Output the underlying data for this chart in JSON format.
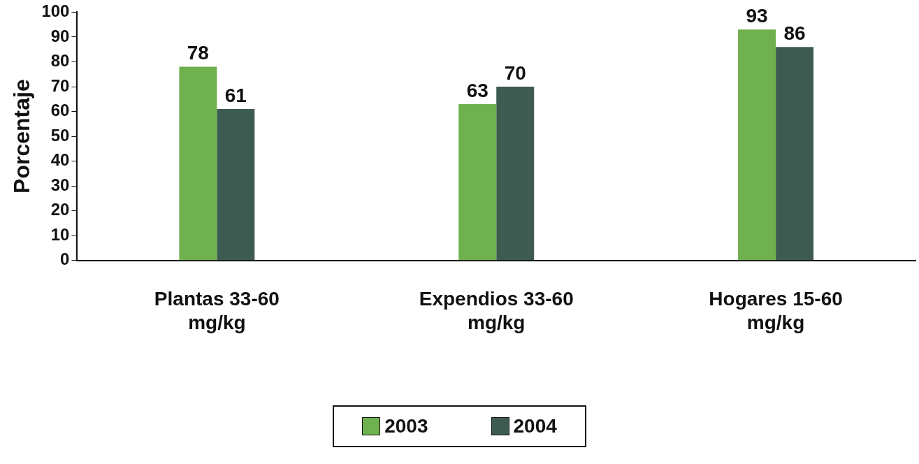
{
  "chart_data": {
    "type": "bar",
    "ylabel": "Porcentaje",
    "categories": [
      "Plantas 33-60 mg/kg",
      "Expendios 33-60 mg/kg",
      "Hogares 15-60 mg/kg"
    ],
    "series": [
      {
        "name": "2003",
        "color": "#6fb04f",
        "values": [
          78,
          63,
          93
        ]
      },
      {
        "name": "2004",
        "color": "#3e5b52",
        "values": [
          61,
          70,
          86
        ]
      }
    ],
    "ylim": [
      0,
      100
    ],
    "yticks": [
      0,
      10,
      20,
      30,
      40,
      50,
      60,
      70,
      80,
      90,
      100
    ],
    "grid": false,
    "legend": "bottom",
    "data_labels": true
  }
}
